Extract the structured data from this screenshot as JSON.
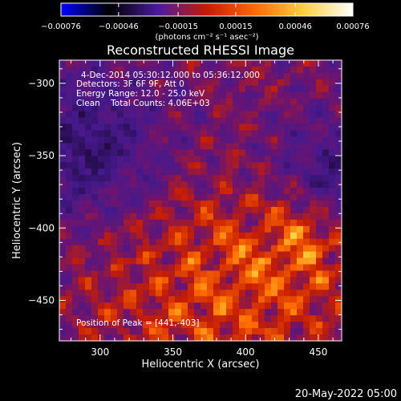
{
  "chart_data": {
    "type": "heatmap",
    "title": "Reconstructed RHESSI Image",
    "xlabel": "Heliocentric X (arcsec)",
    "ylabel": "Heliocentric Y (arcsec)",
    "xlim": [
      272,
      466
    ],
    "ylim": [
      -478,
      -284
    ],
    "xticks": [
      300,
      350,
      400,
      450
    ],
    "yticks": [
      -300,
      -350,
      -400,
      -450
    ],
    "xtick_labels": [
      "300",
      "350",
      "400",
      "450"
    ],
    "ytick_labels": [
      "−300",
      "−350",
      "−400",
      "−450"
    ],
    "colorbar": {
      "min": -0.00076,
      "max": 0.00076,
      "ticks": [
        -0.00076,
        -0.00046,
        -0.00015,
        0.00015,
        0.00046,
        0.00076
      ],
      "tick_labels": [
        "−0.00076",
        "−0.00046",
        "−0.00015",
        "0.00015",
        "0.00046",
        "0.00076"
      ],
      "unit_label": "(photons cm⁻² s⁻¹ asec⁻²)",
      "colormap": [
        "#0000ff",
        "#000000",
        "#4a1aa0",
        "#c81a00",
        "#ff6a00",
        "#ffd040",
        "#ffffff"
      ]
    },
    "peak": {
      "x": 441,
      "y": -403
    },
    "info_lines": [
      "4-Dec-2014 05:30:12.000 to 05:36:12.000",
      "Detectors: 3F 6F 9F, Att 0",
      "Energy Range: 12.0 - 25.0 keV",
      "Clean    Total Counts: 4.06E+03"
    ],
    "peak_label": "Position of Peak = [441,-403]",
    "timestamp": "20-May-2022 05:00"
  }
}
